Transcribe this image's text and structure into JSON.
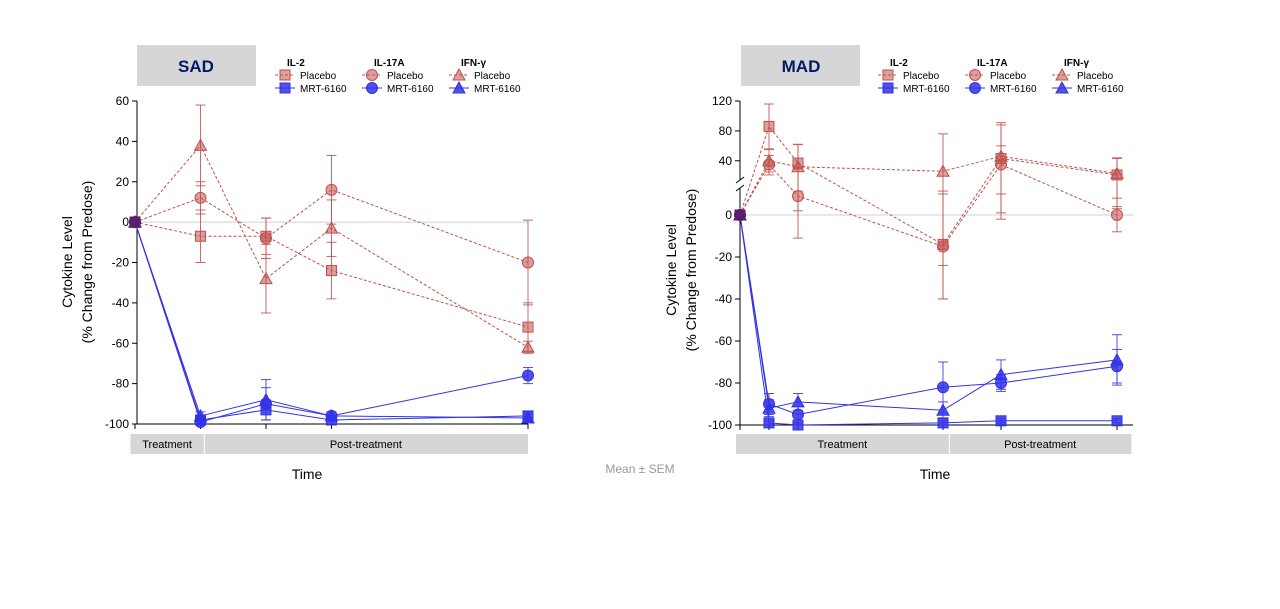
{
  "footnote": "Mean ± SEM",
  "colors": {
    "placebo": "#c0504d",
    "active": "#3232e6",
    "baseline": "#5a1f6e",
    "zero_line": "#d0d0d0",
    "title_box": "#d6d6d6",
    "phase_box": "#d6d6d6"
  },
  "legend": {
    "groups": [
      "IL-2",
      "IL-17A",
      "IFN-γ"
    ],
    "entries": [
      "Placebo",
      "MRT-6160"
    ]
  },
  "chart_data": [
    {
      "type": "line",
      "panel": "SAD",
      "title": "SAD",
      "xlabel": "Time",
      "ylabel_lines": [
        "Cytokine Level",
        "(% Change from Predose)"
      ],
      "ylim": [
        -100,
        60
      ],
      "yticks": [
        60,
        40,
        20,
        0,
        -20,
        -40,
        -60,
        -80,
        -100
      ],
      "x_index": [
        0,
        1,
        2,
        3,
        4
      ],
      "phases": [
        {
          "label": "Treatment",
          "from": -0.07,
          "to": 1.05
        },
        {
          "label": "Post-treatment",
          "from": 1.05,
          "to": 6.05
        }
      ],
      "series": [
        {
          "name": "IL-2 Placebo",
          "cytokine": "IL-2",
          "group": "Placebo",
          "marker": "square",
          "x": [
            0,
            1,
            2,
            3,
            6
          ],
          "y": [
            0,
            -7,
            -7,
            -24,
            -52
          ],
          "err": [
            0,
            13,
            9,
            14,
            12
          ]
        },
        {
          "name": "IL-17A Placebo",
          "cytokine": "IL-17A",
          "group": "Placebo",
          "marker": "circle",
          "x": [
            0,
            1,
            2,
            3,
            6
          ],
          "y": [
            0,
            12,
            -8,
            16,
            -20
          ],
          "err": [
            0,
            8,
            10,
            17,
            21
          ]
        },
        {
          "name": "IFN-γ Placebo",
          "cytokine": "IFN-γ",
          "group": "Placebo",
          "marker": "triangle",
          "x": [
            0,
            1,
            2,
            3,
            6
          ],
          "y": [
            0,
            38,
            -28,
            -3,
            -62
          ],
          "err": [
            0,
            20,
            17,
            14,
            3
          ]
        },
        {
          "name": "IL-2 MRT-6160",
          "cytokine": "IL-2",
          "group": "MRT-6160",
          "marker": "square",
          "x": [
            0,
            1,
            2,
            3,
            6
          ],
          "y": [
            0,
            -98,
            -93,
            -98,
            -96
          ],
          "err": [
            0,
            2,
            5,
            2,
            2
          ]
        },
        {
          "name": "IL-17A MRT-6160",
          "cytokine": "IL-17A",
          "group": "MRT-6160",
          "marker": "circle",
          "x": [
            0,
            1,
            2,
            3,
            6
          ],
          "y": [
            0,
            -99,
            -90,
            -96,
            -76
          ],
          "err": [
            0,
            1,
            8,
            2,
            4
          ]
        },
        {
          "name": "IFN-γ MRT-6160",
          "cytokine": "IFN-γ",
          "group": "MRT-6160",
          "marker": "triangle",
          "x": [
            0,
            1,
            2,
            3,
            6
          ],
          "y": [
            0,
            -96,
            -88,
            -96,
            -97
          ],
          "err": [
            0,
            2,
            10,
            2,
            2
          ]
        }
      ]
    },
    {
      "type": "line",
      "panel": "MAD",
      "title": "MAD",
      "xlabel": "Time",
      "ylabel_lines": [
        "Cytokine Level",
        "(% Change from Predose)"
      ],
      "ylim": [
        -100,
        120
      ],
      "axis_break": [
        10,
        25
      ],
      "yticks": [
        120,
        80,
        40,
        0,
        -20,
        -40,
        -60,
        -80,
        -100
      ],
      "phases": [
        {
          "label": "Treatment",
          "from": -0.07,
          "to": 3.6
        },
        {
          "label": "Post-treatment",
          "from": 3.6,
          "to": 6.75
        }
      ],
      "series": [
        {
          "name": "IL-2 Placebo",
          "cytokine": "IL-2",
          "group": "Placebo",
          "marker": "square",
          "x": [
            0,
            0.5,
            1,
            3.5,
            4.5,
            6.5
          ],
          "y": [
            0,
            86,
            37,
            -14,
            43,
            23
          ],
          "err": [
            0,
            30,
            25,
            26,
            45,
            20
          ]
        },
        {
          "name": "IL-17A Placebo",
          "cytokine": "IL-17A",
          "group": "Placebo",
          "marker": "circle",
          "x": [
            0,
            0.5,
            1,
            3.5,
            4.5,
            6.5
          ],
          "y": [
            0,
            35,
            9,
            -15,
            35,
            0
          ],
          "err": [
            0,
            12,
            20,
            25,
            25,
            8
          ]
        },
        {
          "name": "IFN-γ Placebo",
          "cytokine": "IFN-γ",
          "group": "Placebo",
          "marker": "triangle",
          "x": [
            0,
            0.5,
            1,
            3.5,
            4.5,
            6.5
          ],
          "y": [
            0,
            40,
            32,
            26,
            46,
            24
          ],
          "err": [
            0,
            15,
            30,
            50,
            45,
            20
          ]
        },
        {
          "name": "IL-2 MRT-6160",
          "cytokine": "IL-2",
          "group": "MRT-6160",
          "marker": "square",
          "x": [
            0,
            0.5,
            1,
            3.5,
            4.5,
            6.5
          ],
          "y": [
            0,
            -99,
            -100,
            -99,
            -98,
            -98
          ],
          "err": [
            0,
            1,
            1,
            1,
            1,
            1
          ]
        },
        {
          "name": "IL-17A MRT-6160",
          "cytokine": "IL-17A",
          "group": "MRT-6160",
          "marker": "circle",
          "x": [
            0,
            0.5,
            1,
            3.5,
            4.5,
            6.5
          ],
          "y": [
            0,
            -90,
            -95,
            -82,
            -80,
            -72
          ],
          "err": [
            0,
            5,
            4,
            12,
            4,
            8
          ]
        },
        {
          "name": "IFN-γ MRT-6160",
          "cytokine": "IFN-γ",
          "group": "MRT-6160",
          "marker": "triangle",
          "x": [
            0,
            0.5,
            1,
            3.5,
            4.5,
            6.5
          ],
          "y": [
            0,
            -92,
            -89,
            -93,
            -76,
            -69
          ],
          "err": [
            0,
            4,
            4,
            4,
            7,
            12
          ]
        }
      ]
    }
  ]
}
